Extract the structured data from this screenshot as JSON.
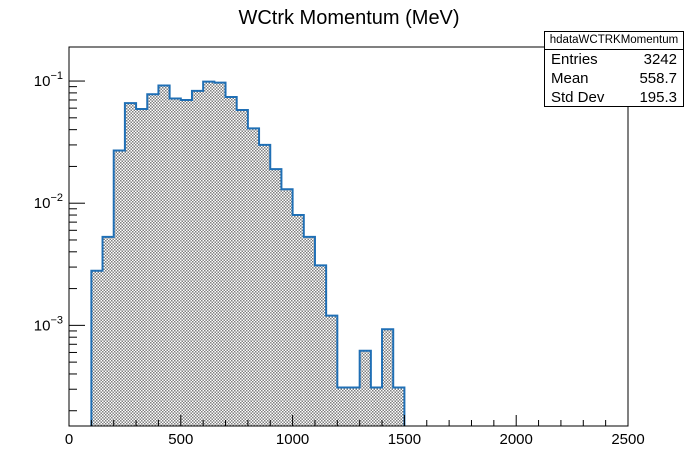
{
  "chart_data": {
    "type": "bar",
    "title": "WCtrk Momentum (MeV)",
    "xlabel": "",
    "ylabel": "",
    "x_scale": "linear",
    "y_scale": "log",
    "xlim": [
      0,
      2500
    ],
    "ylim": [
      0.00015,
      0.19
    ],
    "bin_width": 50,
    "bin_low_edges": [
      100,
      150,
      200,
      250,
      300,
      350,
      400,
      450,
      500,
      550,
      600,
      650,
      700,
      750,
      800,
      850,
      900,
      950,
      1000,
      1050,
      1100,
      1150,
      1200,
      1250,
      1300,
      1350,
      1400,
      1450
    ],
    "values": [
      0.0028,
      0.0053,
      0.027,
      0.066,
      0.059,
      0.078,
      0.092,
      0.072,
      0.07,
      0.083,
      0.099,
      0.097,
      0.074,
      0.058,
      0.041,
      0.03,
      0.019,
      0.013,
      0.008,
      0.0053,
      0.0031,
      0.0012,
      0.00031,
      0.00031,
      0.00062,
      0.00031,
      0.00093,
      0.00031
    ],
    "x_ticks": [
      {
        "value": 0,
        "label": "0"
      },
      {
        "value": 500,
        "label": "500"
      },
      {
        "value": 1000,
        "label": "1000"
      },
      {
        "value": 1500,
        "label": "1500"
      },
      {
        "value": 2000,
        "label": "2000"
      },
      {
        "value": 2500,
        "label": "2500"
      }
    ],
    "y_ticks": [
      {
        "value": 0.1,
        "mant": "10",
        "exp": "−1"
      },
      {
        "value": 0.01,
        "mant": "10",
        "exp": "−2"
      },
      {
        "value": 0.001,
        "mant": "10",
        "exp": "−3"
      }
    ],
    "fill_color": "#7f7f7f",
    "line_color": "#1f6fb5",
    "grid": false,
    "legend": "none",
    "stats": {
      "name": "hdataWCTRKMomentum",
      "rows": [
        {
          "label": "Entries",
          "value": "3242"
        },
        {
          "label": "Mean",
          "value": "558.7"
        },
        {
          "label": "Std Dev",
          "value": "195.3"
        }
      ]
    }
  }
}
